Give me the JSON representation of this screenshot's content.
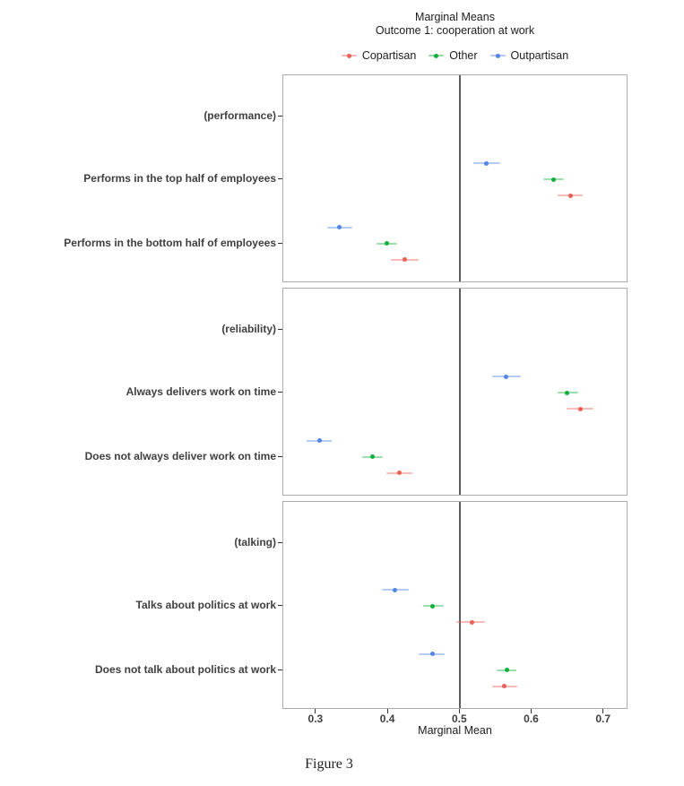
{
  "figure": {
    "title": "Marginal Means",
    "subtitle": "Outcome 1: cooperation at work",
    "xlabel": "Marginal Mean",
    "caption": "Figure 3"
  },
  "chart_data": {
    "type": "scatter",
    "variant": "horizontal point-range (marginal means with confidence intervals), 3 stacked facet panels",
    "title": "Marginal Means",
    "subtitle": "Outcome 1: cooperation at work",
    "xlabel": "Marginal Mean",
    "xlim": [
      0.254,
      0.734
    ],
    "xticks": [
      0.3,
      0.4,
      0.5,
      0.6,
      0.7
    ],
    "reference_line_x": 0.5,
    "grid": false,
    "legend_position": "top",
    "series": [
      {
        "name": "Copartisan",
        "color": "#ec5f55",
        "dodge": 1
      },
      {
        "name": "Other",
        "color": "#14b03c",
        "dodge": 0
      },
      {
        "name": "Outpartisan",
        "color": "#5086e8",
        "dodge": -1
      }
    ],
    "panels": [
      {
        "facet": "performance",
        "rows": [
          {
            "label": "(performance)",
            "estimates": []
          },
          {
            "label": "Performs in the top half of employees",
            "estimates": [
              {
                "series": "Copartisan",
                "mean": 0.653,
                "lower": 0.635,
                "upper": 0.671
              },
              {
                "series": "Other",
                "mean": 0.63,
                "lower": 0.615,
                "upper": 0.644
              },
              {
                "series": "Outpartisan",
                "mean": 0.537,
                "lower": 0.518,
                "upper": 0.556
              }
            ]
          },
          {
            "label": "Performs in the bottom half of employees",
            "estimates": [
              {
                "series": "Copartisan",
                "mean": 0.423,
                "lower": 0.404,
                "upper": 0.442
              },
              {
                "series": "Other",
                "mean": 0.398,
                "lower": 0.384,
                "upper": 0.412
              },
              {
                "series": "Outpartisan",
                "mean": 0.332,
                "lower": 0.315,
                "upper": 0.35
              }
            ]
          }
        ]
      },
      {
        "facet": "reliability",
        "rows": [
          {
            "label": "(reliability)",
            "estimates": []
          },
          {
            "label": "Always delivers work on time",
            "estimates": [
              {
                "series": "Copartisan",
                "mean": 0.667,
                "lower": 0.648,
                "upper": 0.686
              },
              {
                "series": "Other",
                "mean": 0.649,
                "lower": 0.636,
                "upper": 0.664
              },
              {
                "series": "Outpartisan",
                "mean": 0.564,
                "lower": 0.545,
                "upper": 0.584
              }
            ]
          },
          {
            "label": "Does not always deliver work on time",
            "estimates": [
              {
                "series": "Copartisan",
                "mean": 0.415,
                "lower": 0.397,
                "upper": 0.434
              },
              {
                "series": "Other",
                "mean": 0.378,
                "lower": 0.364,
                "upper": 0.392
              },
              {
                "series": "Outpartisan",
                "mean": 0.304,
                "lower": 0.286,
                "upper": 0.321
              }
            ]
          }
        ]
      },
      {
        "facet": "talking",
        "rows": [
          {
            "label": "(talking)",
            "estimates": []
          },
          {
            "label": "Talks about politics at work",
            "estimates": [
              {
                "series": "Copartisan",
                "mean": 0.516,
                "lower": 0.495,
                "upper": 0.534
              },
              {
                "series": "Other",
                "mean": 0.462,
                "lower": 0.448,
                "upper": 0.477
              },
              {
                "series": "Outpartisan",
                "mean": 0.409,
                "lower": 0.391,
                "upper": 0.428
              }
            ]
          },
          {
            "label": "Does not talk about politics at work",
            "estimates": [
              {
                "series": "Copartisan",
                "mean": 0.561,
                "lower": 0.544,
                "upper": 0.58
              },
              {
                "series": "Other",
                "mean": 0.565,
                "lower": 0.551,
                "upper": 0.578
              },
              {
                "series": "Outpartisan",
                "mean": 0.461,
                "lower": 0.442,
                "upper": 0.478
              }
            ]
          }
        ]
      }
    ],
    "caption": "Figure 3"
  }
}
